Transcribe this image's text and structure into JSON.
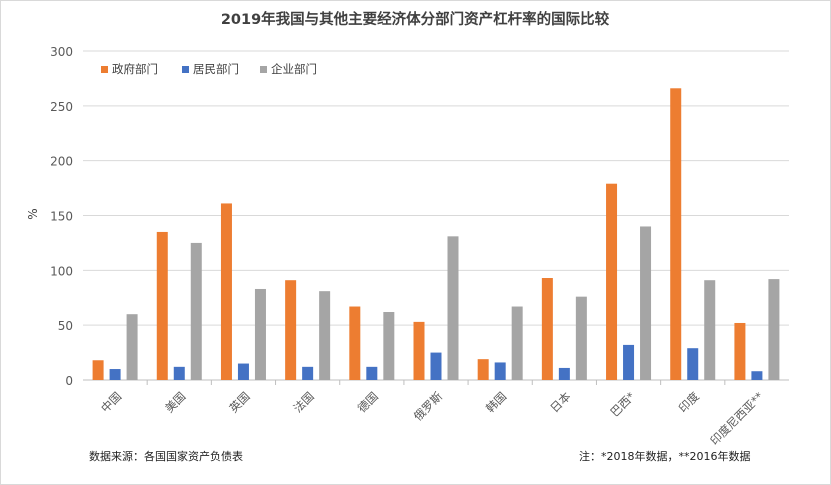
{
  "chart_data": {
    "type": "bar",
    "title": "2019年我国与其他主要经济体分部门资产杠杆率的国际比较",
    "ylabel": "%",
    "xlabel": "",
    "ylim": [
      0,
      300
    ],
    "yticks": [
      0,
      50,
      100,
      150,
      200,
      250,
      300
    ],
    "grid": true,
    "legend_position": "top-left",
    "categories": [
      "中国",
      "美国",
      "英国",
      "法国",
      "德国",
      "俄罗斯",
      "韩国",
      "日本",
      "巴西*",
      "印度",
      "印度尼西亚**"
    ],
    "series": [
      {
        "name": "政府部门",
        "color": "#ED7D31",
        "values": [
          18,
          135,
          161,
          91,
          67,
          53,
          19,
          93,
          179,
          266,
          52
        ]
      },
      {
        "name": "居民部门",
        "color": "#4472C4",
        "values": [
          10,
          12,
          15,
          12,
          12,
          25,
          16,
          11,
          32,
          29,
          8
        ]
      },
      {
        "name": "企业部门",
        "color": "#A5A5A5",
        "values": [
          60,
          125,
          83,
          81,
          62,
          131,
          67,
          76,
          140,
          91,
          92
        ]
      }
    ]
  },
  "footer": {
    "source": "数据来源：各国国家资产负债表",
    "note": "注：*2018年数据，**2016年数据"
  }
}
